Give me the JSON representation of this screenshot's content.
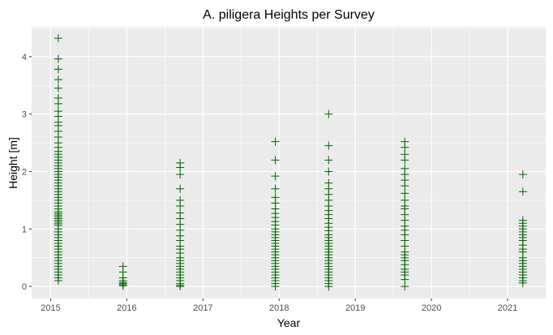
{
  "chart_data": {
    "type": "scatter",
    "title": "A. piligera Heights per Survey",
    "xlabel": "Year",
    "ylabel": "Height [m]",
    "x_ticks": [
      2015,
      2016,
      2017,
      2018,
      2019,
      2020,
      2021
    ],
    "y_ticks": [
      0,
      1,
      2,
      3,
      4
    ],
    "xlim": [
      2014.75,
      2021.5
    ],
    "ylim": [
      -0.21,
      4.52
    ],
    "grid": true,
    "legend": "none",
    "marker": "plus",
    "colors": {
      "panel": "#ebebeb",
      "grid": "#ffffff",
      "points": "#006400"
    },
    "series": [
      {
        "x": 2015.1,
        "heights": [
          4.32,
          3.96,
          3.78,
          3.6,
          3.45,
          3.28,
          3.18,
          3.05,
          2.96,
          2.86,
          2.8,
          2.7,
          2.6,
          2.5,
          2.42,
          2.35,
          2.3,
          2.25,
          2.2,
          2.15,
          2.1,
          2.05,
          2.0,
          1.95,
          1.9,
          1.85,
          1.8,
          1.75,
          1.7,
          1.65,
          1.6,
          1.55,
          1.5,
          1.45,
          1.4,
          1.35,
          1.3,
          1.27,
          1.24,
          1.21,
          1.18,
          1.15,
          1.12,
          1.09,
          1.06,
          1.0,
          0.95,
          0.9,
          0.85,
          0.8,
          0.75,
          0.7,
          0.65,
          0.6,
          0.55,
          0.5,
          0.45,
          0.4,
          0.35,
          0.3,
          0.25,
          0.2,
          0.15,
          0.1
        ]
      },
      {
        "x": 2015.95,
        "heights": [
          0.35,
          0.25,
          0.15,
          0.1,
          0.07,
          0.05,
          0.03,
          0.01
        ]
      },
      {
        "x": 2016.7,
        "heights": [
          2.15,
          2.07,
          1.95,
          1.7,
          1.5,
          1.4,
          1.28,
          1.18,
          1.08,
          0.98,
          0.88,
          0.8,
          0.7,
          0.65,
          0.58,
          0.5,
          0.45,
          0.4,
          0.35,
          0.3,
          0.25,
          0.2,
          0.15,
          0.1,
          0.05,
          0.02,
          0.0
        ]
      },
      {
        "x": 2017.95,
        "heights": [
          2.52,
          2.2,
          1.92,
          1.7,
          1.55,
          1.45,
          1.35,
          1.27,
          1.2,
          1.13,
          1.07,
          1.0,
          0.95,
          0.9,
          0.85,
          0.8,
          0.75,
          0.7,
          0.65,
          0.6,
          0.55,
          0.5,
          0.45,
          0.4,
          0.35,
          0.3,
          0.25,
          0.2,
          0.15,
          0.1,
          0.05,
          0.0
        ]
      },
      {
        "x": 2018.65,
        "heights": [
          3.0,
          2.45,
          2.2,
          2.0,
          1.8,
          1.7,
          1.6,
          1.5,
          1.4,
          1.32,
          1.25,
          1.18,
          1.1,
          1.03,
          0.97,
          0.9,
          0.85,
          0.8,
          0.75,
          0.7,
          0.65,
          0.6,
          0.55,
          0.5,
          0.45,
          0.4,
          0.35,
          0.3,
          0.25,
          0.2,
          0.15,
          0.1,
          0.05,
          0.0
        ]
      },
      {
        "x": 2019.65,
        "heights": [
          2.52,
          2.42,
          2.3,
          2.2,
          2.05,
          1.95,
          1.85,
          1.75,
          1.62,
          1.5,
          1.4,
          1.35,
          1.25,
          1.15,
          1.05,
          0.98,
          0.9,
          0.8,
          0.7,
          0.6,
          0.55,
          0.5,
          0.45,
          0.38,
          0.3,
          0.25,
          0.2,
          0.12,
          0.0
        ]
      },
      {
        "x": 2021.2,
        "heights": [
          1.95,
          1.65,
          1.15,
          1.1,
          1.05,
          1.0,
          0.95,
          0.9,
          0.85,
          0.8,
          0.72,
          0.65,
          0.6,
          0.5,
          0.45,
          0.4,
          0.35,
          0.3,
          0.25,
          0.2,
          0.15,
          0.1,
          0.06
        ]
      }
    ]
  }
}
